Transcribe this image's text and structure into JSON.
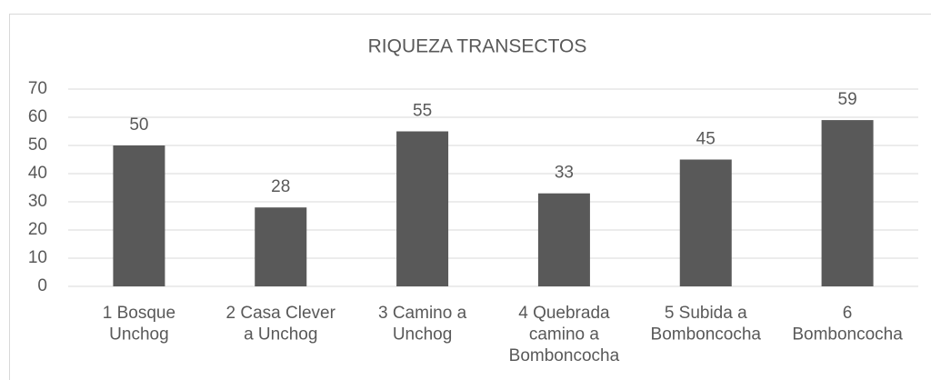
{
  "chart_data": {
    "type": "bar",
    "title": "RIQUEZA TRANSECTOS",
    "categories": [
      [
        "1 Bosque",
        "Unchog"
      ],
      [
        "2 Casa Clever",
        "a Unchog"
      ],
      [
        "3 Camino a",
        "Unchog"
      ],
      [
        "4 Quebrada",
        "camino a",
        "Bomboncocha"
      ],
      [
        "5 Subida a",
        "Bomboncocha"
      ],
      [
        "6",
        "Bomboncocha"
      ]
    ],
    "values": [
      50,
      28,
      55,
      33,
      45,
      59
    ],
    "color": "#595959",
    "ylim": [
      0,
      70
    ],
    "yticks": [
      0,
      10,
      20,
      30,
      40,
      50,
      60,
      70
    ],
    "grid": true
  }
}
